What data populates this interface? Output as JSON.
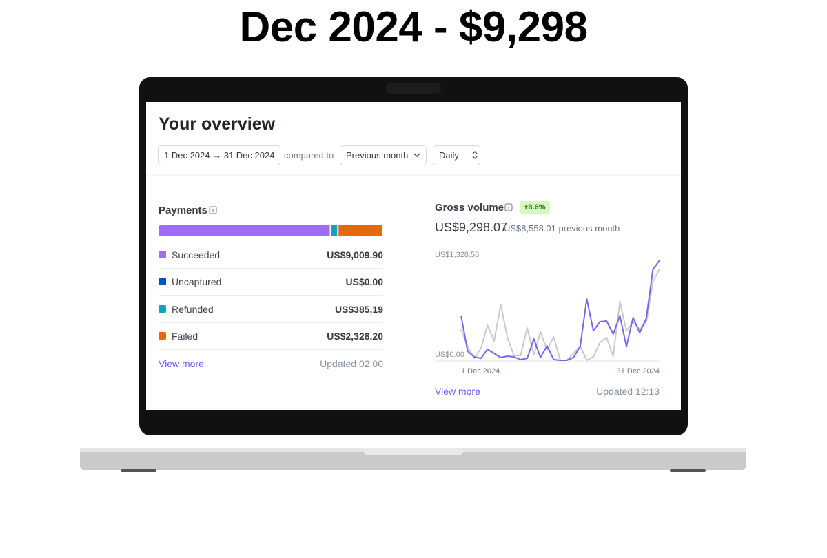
{
  "title": "Dec 2024 - $9,298",
  "overview": {
    "heading": "Your overview",
    "date_range": "1 Dec 2024 → 31 Dec 2024",
    "compared_to": "compared to",
    "comparison": "Previous month",
    "interval": "Daily"
  },
  "payments": {
    "title": "Payments",
    "items": [
      {
        "name": "Succeeded",
        "value": 9009.9,
        "value_label": "US$9,009.90",
        "color": "#9f6cf5"
      },
      {
        "name": "Uncaptured",
        "value": 0,
        "value_label": "US$0.00",
        "color": "#0055bc"
      },
      {
        "name": "Refunded",
        "value": 385.19,
        "value_label": "US$385.19",
        "color": "#10a2c0"
      },
      {
        "name": "Failed",
        "value": 2328.2,
        "value_label": "US$2,328.20",
        "color": "#e5690f"
      }
    ],
    "link": "View more",
    "updated": "Updated 02:00"
  },
  "gross_volume": {
    "title": "Gross volume",
    "change": "+8.6%",
    "total": "US$9,298.07",
    "previous": "US$8,558.01 previous month",
    "link": "View more",
    "updated": "Updated 12:13"
  },
  "chart_data": {
    "type": "line",
    "categories": [
      "1 Dec 2024",
      null,
      null,
      null,
      null,
      null,
      null,
      null,
      null,
      null,
      null,
      null,
      null,
      null,
      null,
      null,
      null,
      null,
      null,
      null,
      null,
      null,
      null,
      null,
      null,
      null,
      null,
      null,
      null,
      null,
      "31 Dec 2024"
    ],
    "series": [
      {
        "color": "#c7c9cc",
        "values": [
          412,
          183,
          27,
          156,
          467,
          256,
          742,
          302,
          64,
          64,
          431,
          73,
          376,
          137,
          311,
          0,
          0,
          92,
          192,
          0,
          46,
          238,
          302,
          55,
          779,
          394,
          513,
          412,
          504,
          1036,
          1218
        ]
      },
      {
        "color": "#7a63f1",
        "values": [
          595,
          119,
          46,
          27,
          147,
          92,
          37,
          55,
          46,
          9,
          27,
          284,
          37,
          192,
          9,
          0,
          0,
          37,
          183,
          815,
          394,
          513,
          522,
          348,
          595,
          183,
          568,
          366,
          559,
          1209,
          1328.58
        ]
      }
    ],
    "ylim": [
      0,
      1328.58
    ],
    "yticks": [
      {
        "value": 0,
        "label": "US$0.00"
      },
      {
        "value": 1328.58,
        "label": "US$1,328.58"
      }
    ]
  }
}
